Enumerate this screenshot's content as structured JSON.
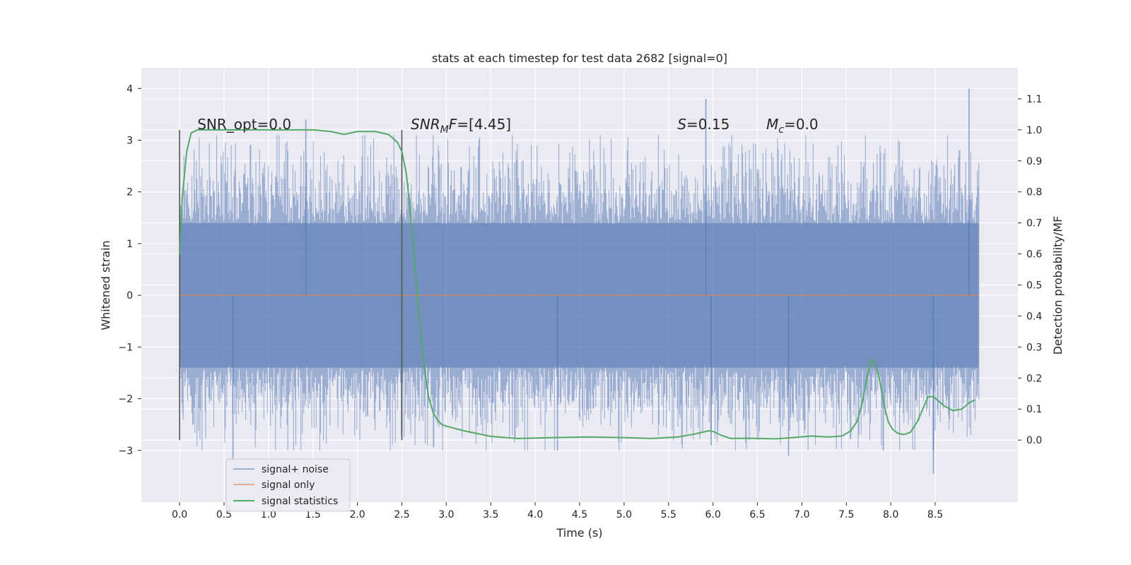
{
  "chart_data": {
    "type": "line",
    "title": "stats at each timestep for test data 2682 [signal=0]",
    "xlabel": "Time (s)",
    "ylabel": "Whitened strain",
    "y2label": "Detection probability/MF",
    "xlim": [
      -0.43,
      9.43
    ],
    "ylim": [
      -4.0,
      4.4
    ],
    "y2lim": [
      -0.2,
      1.2
    ],
    "x_ticks": [
      0.0,
      0.5,
      1.0,
      1.5,
      2.0,
      2.5,
      3.0,
      3.5,
      4.0,
      4.5,
      5.0,
      5.5,
      6.0,
      6.5,
      7.0,
      7.5,
      8.0,
      8.5
    ],
    "x_tick_labels": [
      "0.0",
      "0.5",
      "1.0",
      "1.5",
      "2.0",
      "2.5",
      "3.0",
      "3.5",
      "4.0",
      "4.5",
      "5.0",
      "5.5",
      "6.0",
      "6.5",
      "7.0",
      "7.5",
      "8.0",
      "8.5"
    ],
    "y_ticks": [
      4,
      3,
      2,
      1,
      0,
      -1,
      -2,
      -3
    ],
    "y_tick_labels": [
      "4",
      "3",
      "2",
      "1",
      "0",
      "−1",
      "−2",
      "−3"
    ],
    "y2_ticks": [
      1.1,
      1.0,
      0.9,
      0.8,
      0.7,
      0.6,
      0.5,
      0.4,
      0.3,
      0.2,
      0.1,
      0.0
    ],
    "y2_tick_labels": [
      "1.1",
      "1.0",
      "0.9",
      "0.8",
      "0.7",
      "0.6",
      "0.5",
      "0.4",
      "0.3",
      "0.2",
      "0.1",
      "0.0"
    ],
    "grid": true,
    "legend_placement": "lower-left",
    "colors": {
      "background": "#eaeaf2",
      "grid": "#ffffff",
      "noise": "#4c72b0",
      "signal": "#dd8452",
      "stats": "#55a868",
      "vline": "#555555"
    },
    "series": [
      {
        "name": "signal+ noise",
        "axis": "left",
        "style": "noise-band",
        "t_range": [
          0.0,
          8.99
        ],
        "envelope_core": [
          -1.4,
          1.4
        ],
        "spike_peaks": [
          {
            "x": 0.6,
            "y": -3.2
          },
          {
            "x": 1.42,
            "y": 3.4
          },
          {
            "x": 5.92,
            "y": 3.8
          },
          {
            "x": 5.98,
            "y": -2.9
          },
          {
            "x": 4.25,
            "y": -3.0
          },
          {
            "x": 6.85,
            "y": -3.1
          },
          {
            "x": 8.48,
            "y": -3.45
          },
          {
            "x": 8.88,
            "y": 4.0
          }
        ]
      },
      {
        "name": "signal only",
        "axis": "left",
        "style": "line",
        "x": [
          0.0,
          8.99
        ],
        "y": [
          0.0,
          0.0
        ]
      },
      {
        "name": "signal statistics",
        "axis": "right",
        "style": "line",
        "x": [
          0.0,
          0.03,
          0.08,
          0.13,
          0.2,
          0.4,
          0.8,
          1.2,
          1.5,
          1.7,
          1.85,
          2.0,
          2.2,
          2.35,
          2.45,
          2.5,
          2.55,
          2.6,
          2.65,
          2.7,
          2.75,
          2.8,
          2.85,
          2.9,
          2.95,
          3.0,
          3.2,
          3.5,
          3.8,
          4.2,
          4.6,
          5.0,
          5.3,
          5.6,
          5.8,
          5.95,
          6.0,
          6.1,
          6.2,
          6.4,
          6.7,
          6.9,
          7.1,
          7.3,
          7.45,
          7.55,
          7.62,
          7.68,
          7.73,
          7.78,
          7.82,
          7.87,
          7.92,
          7.97,
          8.02,
          8.08,
          8.15,
          8.22,
          8.3,
          8.36,
          8.42,
          8.48,
          8.54,
          8.6,
          8.7,
          8.8,
          8.88,
          8.95
        ],
        "y": [
          0.6,
          0.78,
          0.93,
          0.99,
          1.0,
          1.0,
          1.0,
          1.0,
          1.0,
          0.995,
          0.985,
          0.995,
          0.995,
          0.985,
          0.96,
          0.93,
          0.86,
          0.72,
          0.55,
          0.38,
          0.24,
          0.14,
          0.09,
          0.065,
          0.05,
          0.045,
          0.03,
          0.012,
          0.005,
          0.008,
          0.01,
          0.008,
          0.005,
          0.01,
          0.02,
          0.03,
          0.028,
          0.015,
          0.005,
          0.006,
          0.004,
          0.008,
          0.013,
          0.01,
          0.013,
          0.03,
          0.06,
          0.12,
          0.2,
          0.26,
          0.25,
          0.2,
          0.12,
          0.06,
          0.035,
          0.022,
          0.018,
          0.025,
          0.06,
          0.1,
          0.14,
          0.14,
          0.125,
          0.11,
          0.095,
          0.1,
          0.12,
          0.13
        ]
      }
    ],
    "vlines": [
      0.0,
      2.5
    ],
    "annotations": [
      {
        "text": "SNR_opt=0.0",
        "x": 0.2,
        "y": 1.0
      },
      {
        "text": "SNR_MF=[4.45]",
        "x": 2.6,
        "y": 1.0
      },
      {
        "text": "S=0.15",
        "x": 5.6,
        "y": 1.0
      },
      {
        "text": "M_c=0.0",
        "x": 6.6,
        "y": 1.0
      }
    ],
    "legend": [
      "signal+ noise",
      "signal only",
      "signal statistics"
    ]
  }
}
